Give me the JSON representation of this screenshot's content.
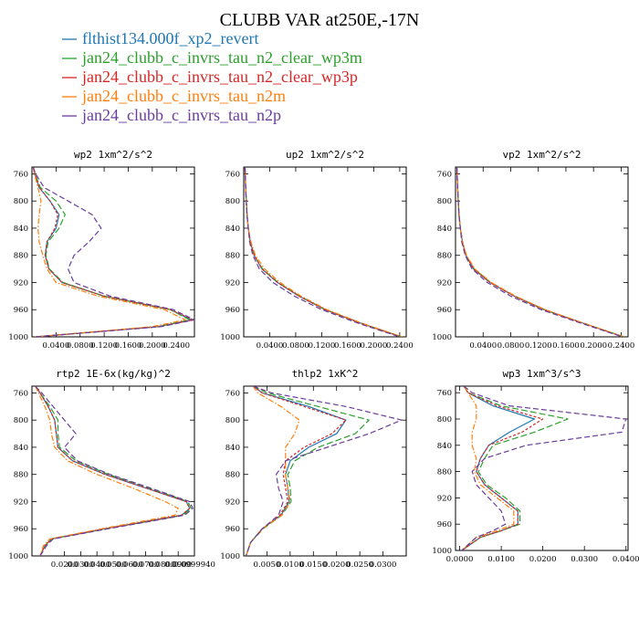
{
  "figure_title": "CLUBB VAR at250E,-17N",
  "legend": [
    {
      "name": "flthist134.000f_xp2_revert",
      "color": "#1f77b4"
    },
    {
      "name": "jan24_clubb_c_invrs_tau_n2_clear_wp3m",
      "color": "#2ca02c"
    },
    {
      "name": "jan24_clubb_c_invrs_tau_n2_clear_wp3p",
      "color": "#d62728"
    },
    {
      "name": "jan24_clubb_c_invrs_tau_n2m",
      "color": "#ff7f0e"
    },
    {
      "name": "jan24_clubb_c_invrs_tau_n2p",
      "color": "#6a3d9a"
    }
  ],
  "chart_data": [
    {
      "type": "line",
      "title": "wp2  1xm^2/s^2",
      "xlim": [
        0,
        0.27
      ],
      "ylim": [
        1000,
        750
      ],
      "y_ticks": [
        "760",
        "800",
        "840",
        "880",
        "920",
        "960",
        "1000"
      ],
      "x_ticks": [
        "0.0400",
        "0.0800",
        "0.1200",
        "0.1600",
        "0.2000",
        "0.2400"
      ],
      "y": [
        750,
        760,
        780,
        800,
        820,
        840,
        860,
        880,
        900,
        920,
        940,
        960,
        975,
        985,
        1000
      ],
      "series": [
        {
          "name": "flthist134.000f_xp2_revert",
          "x": [
            0.002,
            0.005,
            0.012,
            0.03,
            0.045,
            0.04,
            0.025,
            0.022,
            0.028,
            0.05,
            0.12,
            0.23,
            0.265,
            0.21,
            0.006
          ]
        },
        {
          "name": "jan24_clubb_c_invrs_tau_n2_clear_wp3m",
          "x": [
            0.002,
            0.005,
            0.014,
            0.04,
            0.055,
            0.045,
            0.027,
            0.023,
            0.029,
            0.052,
            0.12,
            0.23,
            0.262,
            0.208,
            0.006
          ]
        },
        {
          "name": "jan24_clubb_c_invrs_tau_n2_clear_wp3p",
          "x": [
            0.002,
            0.005,
            0.012,
            0.03,
            0.043,
            0.038,
            0.025,
            0.022,
            0.028,
            0.05,
            0.12,
            0.23,
            0.268,
            0.212,
            0.006
          ]
        },
        {
          "name": "jan24_clubb_c_invrs_tau_n2m",
          "x": [
            0.002,
            0.004,
            0.01,
            0.015,
            0.012,
            0.01,
            0.012,
            0.018,
            0.025,
            0.04,
            0.11,
            0.22,
            0.255,
            0.2,
            0.005
          ]
        },
        {
          "name": "jan24_clubb_c_invrs_tau_n2p",
          "x": [
            0.002,
            0.006,
            0.02,
            0.06,
            0.1,
            0.115,
            0.095,
            0.07,
            0.06,
            0.07,
            0.13,
            0.235,
            0.27,
            0.215,
            0.006
          ]
        }
      ]
    },
    {
      "type": "line",
      "title": "up2  1xm^2/s^2",
      "xlim": [
        0,
        0.25
      ],
      "ylim": [
        1000,
        750
      ],
      "y_ticks": [
        "760",
        "800",
        "840",
        "880",
        "920",
        "960",
        "1000"
      ],
      "x_ticks": [
        "0.0400",
        "0.0800",
        "0.1200",
        "0.1600",
        "0.2000",
        "0.2400"
      ],
      "y": [
        750,
        780,
        800,
        820,
        840,
        860,
        880,
        900,
        920,
        940,
        960,
        980,
        1000
      ],
      "series": [
        {
          "name": "flthist134.000f_xp2_revert",
          "x": [
            0.002,
            0.003,
            0.004,
            0.005,
            0.007,
            0.01,
            0.016,
            0.028,
            0.052,
            0.085,
            0.125,
            0.18,
            0.242
          ]
        },
        {
          "name": "jan24_clubb_c_invrs_tau_n2_clear_wp3m",
          "x": [
            0.002,
            0.003,
            0.004,
            0.005,
            0.007,
            0.01,
            0.016,
            0.029,
            0.053,
            0.086,
            0.126,
            0.181,
            0.243
          ]
        },
        {
          "name": "jan24_clubb_c_invrs_tau_n2_clear_wp3p",
          "x": [
            0.002,
            0.003,
            0.004,
            0.005,
            0.007,
            0.01,
            0.016,
            0.028,
            0.052,
            0.085,
            0.125,
            0.18,
            0.242
          ]
        },
        {
          "name": "jan24_clubb_c_invrs_tau_n2m",
          "x": [
            0.002,
            0.003,
            0.004,
            0.005,
            0.007,
            0.011,
            0.018,
            0.032,
            0.056,
            0.088,
            0.128,
            0.182,
            0.244
          ]
        },
        {
          "name": "jan24_clubb_c_invrs_tau_n2p",
          "x": [
            0.002,
            0.003,
            0.004,
            0.005,
            0.007,
            0.009,
            0.014,
            0.024,
            0.045,
            0.078,
            0.12,
            0.176,
            0.24
          ]
        }
      ]
    },
    {
      "type": "line",
      "title": "vp2  1xm^2/s^2",
      "xlim": [
        0,
        0.25
      ],
      "ylim": [
        1000,
        750
      ],
      "y_ticks": [
        "760",
        "800",
        "840",
        "880",
        "920",
        "960",
        "1000"
      ],
      "x_ticks": [
        "0.0400",
        "0.0800",
        "0.1200",
        "0.1600",
        "0.2000",
        "0.2400"
      ],
      "y": [
        750,
        780,
        800,
        820,
        840,
        860,
        880,
        900,
        920,
        940,
        960,
        980,
        1000
      ],
      "series": [
        {
          "name": "flthist134.000f_xp2_revert",
          "x": [
            0.002,
            0.003,
            0.004,
            0.005,
            0.007,
            0.01,
            0.015,
            0.026,
            0.05,
            0.085,
            0.128,
            0.185,
            0.243
          ]
        },
        {
          "name": "jan24_clubb_c_invrs_tau_n2_clear_wp3m",
          "x": [
            0.002,
            0.003,
            0.004,
            0.005,
            0.007,
            0.01,
            0.015,
            0.027,
            0.051,
            0.086,
            0.129,
            0.186,
            0.244
          ]
        },
        {
          "name": "jan24_clubb_c_invrs_tau_n2_clear_wp3p",
          "x": [
            0.002,
            0.003,
            0.004,
            0.005,
            0.007,
            0.01,
            0.015,
            0.026,
            0.05,
            0.085,
            0.128,
            0.185,
            0.243
          ]
        },
        {
          "name": "jan24_clubb_c_invrs_tau_n2m",
          "x": [
            0.002,
            0.003,
            0.004,
            0.005,
            0.007,
            0.01,
            0.016,
            0.028,
            0.052,
            0.087,
            0.13,
            0.186,
            0.244
          ]
        },
        {
          "name": "jan24_clubb_c_invrs_tau_n2p",
          "x": [
            0.002,
            0.003,
            0.004,
            0.005,
            0.007,
            0.009,
            0.014,
            0.024,
            0.046,
            0.08,
            0.124,
            0.182,
            0.242
          ]
        }
      ]
    },
    {
      "type": "line",
      "title": "rtp2  1E-6x(kg/kg)^2",
      "xlim": [
        0,
        0.1
      ],
      "ylim": [
        1000,
        750
      ],
      "y_ticks": [
        "760",
        "800",
        "840",
        "880",
        "920",
        "960",
        "1000"
      ],
      "x_ticks": [
        "0.0200",
        "0.0300",
        "0.0400",
        "0.0500",
        "0.0600",
        "0.0700",
        "0.0800",
        "0.0900",
        "0.0999940"
      ],
      "y": [
        750,
        760,
        780,
        800,
        820,
        840,
        860,
        880,
        900,
        920,
        930,
        940,
        960,
        975,
        985,
        1000
      ],
      "series": [
        {
          "name": "flthist134.000f_xp2_revert",
          "x": [
            0.002,
            0.005,
            0.01,
            0.014,
            0.015,
            0.016,
            0.025,
            0.045,
            0.07,
            0.095,
            0.097,
            0.092,
            0.045,
            0.012,
            0.008,
            0.005
          ]
        },
        {
          "name": "jan24_clubb_c_invrs_tau_n2_clear_wp3m",
          "x": [
            0.002,
            0.005,
            0.011,
            0.016,
            0.016,
            0.017,
            0.027,
            0.047,
            0.072,
            0.096,
            0.098,
            0.093,
            0.046,
            0.012,
            0.008,
            0.005
          ]
        },
        {
          "name": "jan24_clubb_c_invrs_tau_n2_clear_wp3p",
          "x": [
            0.002,
            0.005,
            0.01,
            0.014,
            0.015,
            0.016,
            0.025,
            0.045,
            0.07,
            0.095,
            0.097,
            0.092,
            0.045,
            0.012,
            0.008,
            0.005
          ]
        },
        {
          "name": "jan24_clubb_c_invrs_tau_n2m",
          "x": [
            0.002,
            0.004,
            0.008,
            0.011,
            0.012,
            0.014,
            0.022,
            0.04,
            0.062,
            0.082,
            0.09,
            0.088,
            0.043,
            0.011,
            0.007,
            0.005
          ]
        },
        {
          "name": "jan24_clubb_c_invrs_tau_n2p",
          "x": [
            0.002,
            0.006,
            0.013,
            0.02,
            0.027,
            0.02,
            0.028,
            0.048,
            0.073,
            0.097,
            0.099,
            0.094,
            0.047,
            0.013,
            0.009,
            0.005
          ]
        }
      ]
    },
    {
      "type": "line",
      "title": "thlp2  1xK^2",
      "xlim": [
        0,
        0.035
      ],
      "ylim": [
        1000,
        750
      ],
      "y_ticks": [
        "760",
        "800",
        "840",
        "880",
        "920",
        "960",
        "1000"
      ],
      "x_ticks": [
        "0.0050",
        "0.0100",
        "0.0150",
        "0.0200",
        "0.0250",
        "0.0300"
      ],
      "y": [
        750,
        760,
        780,
        800,
        820,
        840,
        860,
        880,
        900,
        920,
        940,
        960,
        980,
        1000
      ],
      "series": [
        {
          "name": "flthist134.000f_xp2_revert",
          "x": [
            0.002,
            0.004,
            0.014,
            0.022,
            0.02,
            0.014,
            0.01,
            0.009,
            0.0095,
            0.0098,
            0.008,
            0.004,
            0.0015,
            0.0005
          ]
        },
        {
          "name": "jan24_clubb_c_invrs_tau_n2_clear_wp3m",
          "x": [
            0.002,
            0.005,
            0.016,
            0.027,
            0.024,
            0.016,
            0.011,
            0.0095,
            0.01,
            0.0102,
            0.0082,
            0.0042,
            0.0015,
            0.0005
          ]
        },
        {
          "name": "jan24_clubb_c_invrs_tau_n2_clear_wp3p",
          "x": [
            0.002,
            0.004,
            0.013,
            0.022,
            0.019,
            0.013,
            0.009,
            0.0085,
            0.009,
            0.0095,
            0.0078,
            0.004,
            0.0015,
            0.0005
          ]
        },
        {
          "name": "jan24_clubb_c_invrs_tau_n2m",
          "x": [
            0.002,
            0.003,
            0.008,
            0.012,
            0.011,
            0.009,
            0.009,
            0.009,
            0.0095,
            0.01,
            0.0082,
            0.004,
            0.0015,
            0.0005
          ]
        },
        {
          "name": "jan24_clubb_c_invrs_tau_n2p",
          "x": [
            0.002,
            0.006,
            0.022,
            0.034,
            0.027,
            0.018,
            0.009,
            0.007,
            0.0075,
            0.0085,
            0.0075,
            0.004,
            0.0015,
            0.0005
          ]
        }
      ]
    },
    {
      "type": "line",
      "title": "wp3  1xm^3/s^3",
      "xlim": [
        -0.001,
        0.0405
      ],
      "ylim": [
        1000,
        750
      ],
      "y_ticks": [
        "760",
        "800",
        "840",
        "880",
        "920",
        "960",
        "1000"
      ],
      "x_ticks": [
        "0.0000",
        "0.0100",
        "0.0200",
        "0.0300",
        "0.0400"
      ],
      "y": [
        750,
        760,
        780,
        800,
        820,
        840,
        860,
        880,
        900,
        920,
        940,
        960,
        970,
        980,
        1000
      ],
      "series": [
        {
          "name": "flthist134.000f_xp2_revert",
          "x": [
            0.001,
            0.002,
            0.008,
            0.018,
            0.012,
            0.007,
            0.005,
            0.004,
            0.006,
            0.01,
            0.014,
            0.014,
            0.01,
            0.005,
            0.0005
          ]
        },
        {
          "name": "jan24_clubb_c_invrs_tau_n2_clear_wp3m",
          "x": [
            0.001,
            0.002,
            0.01,
            0.026,
            0.018,
            0.008,
            0.006,
            0.0045,
            0.0065,
            0.011,
            0.0145,
            0.0145,
            0.01,
            0.005,
            0.0005
          ]
        },
        {
          "name": "jan24_clubb_c_invrs_tau_n2_clear_wp3p",
          "x": [
            0.001,
            0.002,
            0.009,
            0.02,
            0.015,
            0.007,
            0.005,
            0.004,
            0.006,
            0.01,
            0.014,
            0.014,
            0.01,
            0.005,
            0.0005
          ]
        },
        {
          "name": "jan24_clubb_c_invrs_tau_n2m",
          "x": [
            0.001,
            0.002,
            0.004,
            0.004,
            0.003,
            0.003,
            0.004,
            0.0035,
            0.005,
            0.009,
            0.013,
            0.013,
            0.009,
            0.004,
            0.0005
          ]
        },
        {
          "name": "jan24_clubb_c_invrs_tau_n2p",
          "x": [
            0.001,
            0.003,
            0.012,
            0.04,
            0.039,
            0.016,
            0.006,
            0.003,
            0.004,
            0.007,
            0.01,
            0.011,
            0.008,
            0.004,
            0.0005
          ]
        }
      ]
    }
  ]
}
